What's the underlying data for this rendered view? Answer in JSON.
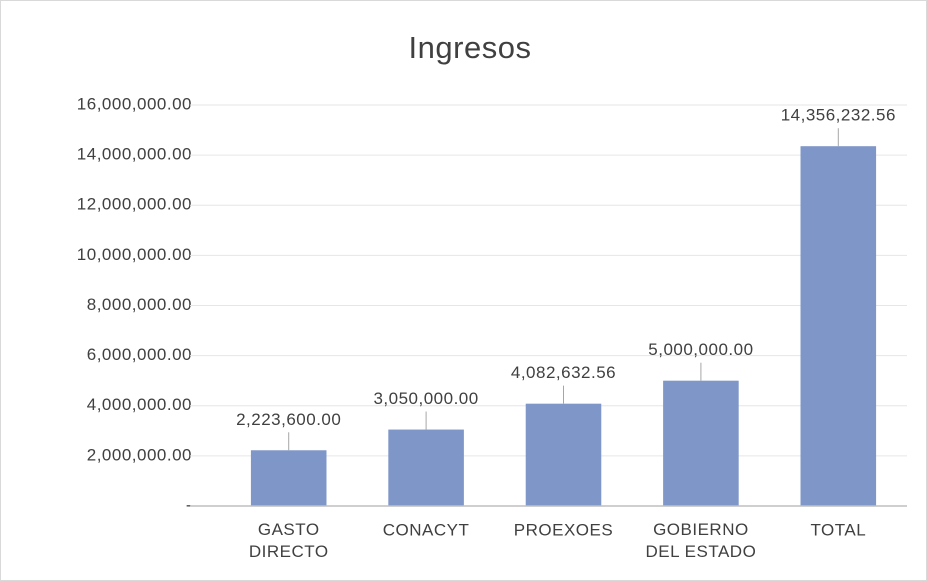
{
  "chart_data": {
    "type": "bar",
    "title": "Ingresos",
    "categories": [
      "GASTO DIRECTO",
      "CONACYT",
      "PROEXOES",
      "GOBIERNO DEL ESTADO",
      "TOTAL"
    ],
    "values": [
      2223600,
      3050000,
      4082632.56,
      5000000,
      14356232.56
    ],
    "value_labels": [
      "2,223,600.00",
      "3,050,000.00",
      "4,082,632.56",
      "5,000,000.00",
      "14,356,232.56"
    ],
    "color": "#7f96c8",
    "ylim": [
      0,
      16000000
    ],
    "yticks": [
      {
        "value": 0,
        "label": "-"
      },
      {
        "value": 2000000,
        "label": "2,000,000.00"
      },
      {
        "value": 4000000,
        "label": "4,000,000.00"
      },
      {
        "value": 6000000,
        "label": "6,000,000.00"
      },
      {
        "value": 8000000,
        "label": "8,000,000.00"
      },
      {
        "value": 10000000,
        "label": "10,000,000.00"
      },
      {
        "value": 12000000,
        "label": "12,000,000.00"
      },
      {
        "value": 14000000,
        "label": "14,000,000.00"
      },
      {
        "value": 16000000,
        "label": "16,000,000.00"
      }
    ],
    "grid": true
  }
}
